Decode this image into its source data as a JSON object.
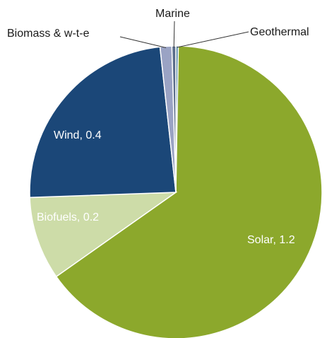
{
  "chart_data": {
    "type": "pie",
    "title": "",
    "slices": [
      {
        "name": "Geothermal",
        "value": 0.005,
        "color": "#4a7f9e",
        "label": "Geothermal"
      },
      {
        "name": "Solar",
        "value": 1.2,
        "color": "#8ca82c",
        "label": "Solar, 1.2"
      },
      {
        "name": "Biofuels",
        "value": 0.17,
        "color": "#cddca8",
        "label": "Biofuels, 0.2"
      },
      {
        "name": "Wind",
        "value": 0.44,
        "color": "#1b4778",
        "label": "Wind, 0.4"
      },
      {
        "name": "Biomass & w-t-e",
        "value": 0.024,
        "color": "#9aa3c4",
        "label": "Biomass & w-t-e"
      },
      {
        "name": "Marine",
        "value": 0.008,
        "color": "#5b6e8c",
        "label": "Marine"
      }
    ],
    "start_angle_deg": 0,
    "direction": "clockwise",
    "legend": "none"
  }
}
